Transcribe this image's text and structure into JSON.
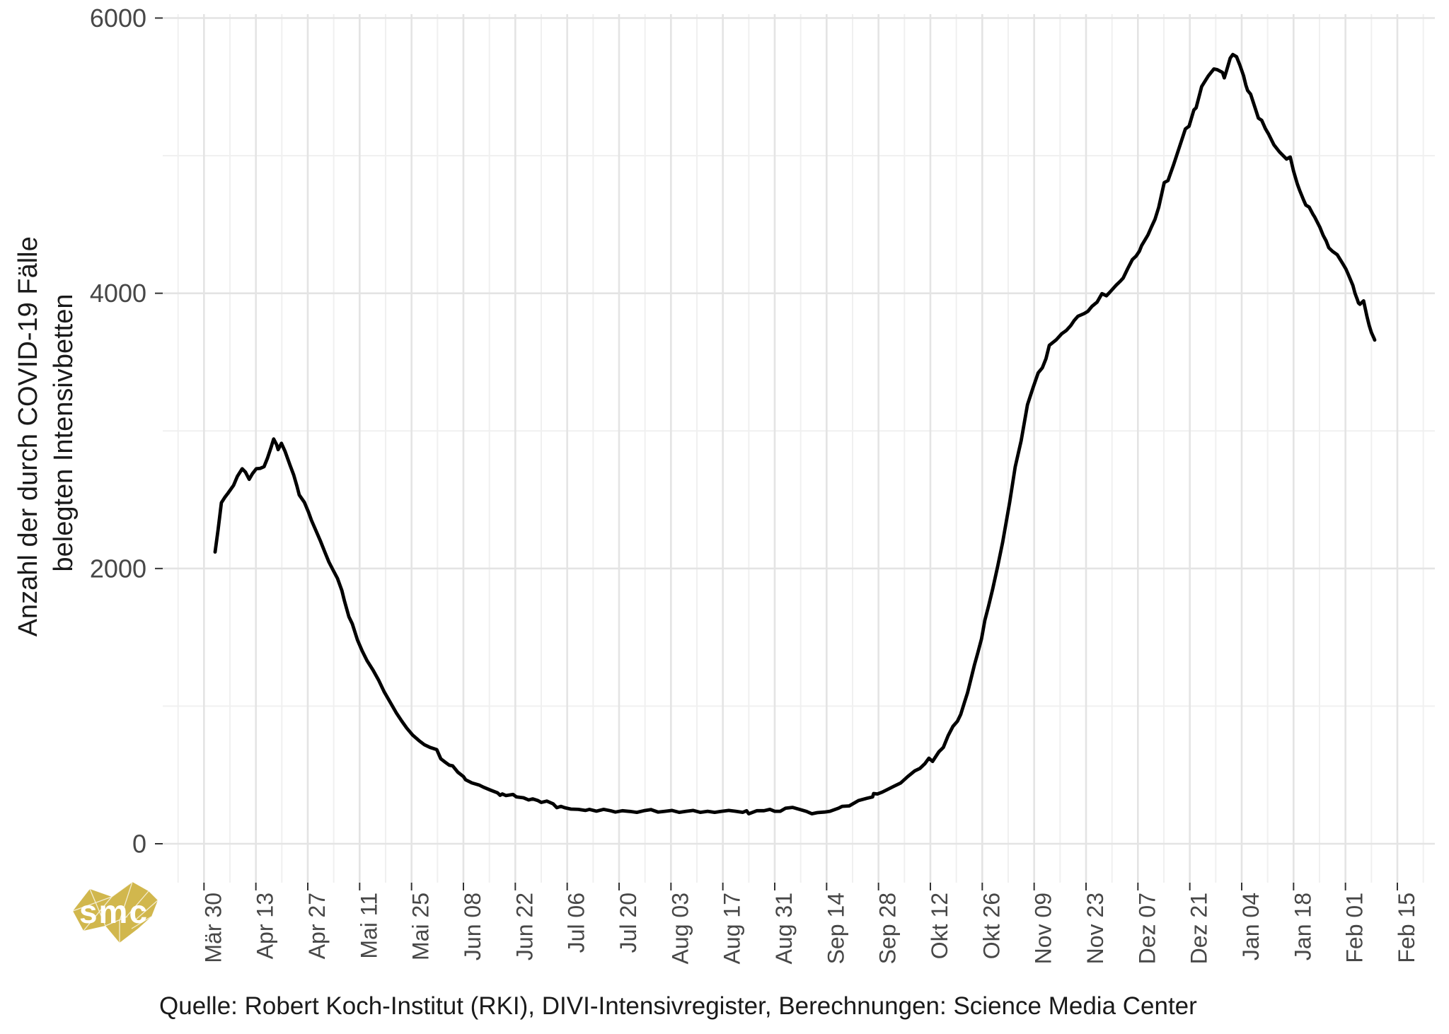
{
  "figure": {
    "y_axis": {
      "title_lines": [
        "Anzahl der durch COVID-19 Fälle",
        "belegten Intensivbetten"
      ],
      "tick_labels": [
        "0",
        "2000",
        "4000",
        "6000"
      ],
      "major_values": [
        0,
        2000,
        4000,
        6000
      ],
      "minor_values": [
        1000,
        3000,
        5000
      ]
    },
    "x_axis": {
      "tick_labels": [
        "Mär 30",
        "Apr 13",
        "Apr 27",
        "Mai 11",
        "Mai 25",
        "Jun 08",
        "Jun 22",
        "Jul 06",
        "Jul 20",
        "Aug 03",
        "Aug 17",
        "Aug 31",
        "Sep 14",
        "Sep 28",
        "Okt 12",
        "Okt 26",
        "Nov 09",
        "Nov 23",
        "Dez 07",
        "Dez 21",
        "Jan 04",
        "Jan 18",
        "Feb 01",
        "Feb 15"
      ],
      "tick_interval_days": 14,
      "minor_interval_days": 7
    },
    "caption": "Quelle: Robert Koch-Institut (RKI), DIVI-Intensivregister, Berechnungen: Science Media Center",
    "logo_text": "smc",
    "colors": {
      "line": "#000000",
      "grid_major": "#e4e4e4",
      "grid_minor": "#f0f0f0",
      "axis_tick": "#333333",
      "tick_text": "#474747",
      "text": "#1a1a1a",
      "logo_gold": "#d1b74d",
      "background": "#ffffff"
    }
  },
  "chart_data": {
    "type": "line",
    "title": "",
    "xlabel": "",
    "ylabel": "Anzahl der durch COVID-19 Fälle belegten Intensivbetten",
    "ylim": [
      0,
      6000
    ],
    "grid": true,
    "legend": false,
    "x_unit": "days since Mär 30",
    "x_tick_days": [
      0,
      14,
      28,
      42,
      56,
      70,
      84,
      98,
      112,
      126,
      140,
      154,
      168,
      182,
      196,
      210,
      224,
      238,
      252,
      266,
      280,
      294,
      308,
      322
    ],
    "points": [
      [
        3,
        2120
      ],
      [
        3.8,
        2280
      ],
      [
        4.7,
        2478
      ],
      [
        5.7,
        2520
      ],
      [
        6.4,
        2545
      ],
      [
        8,
        2605
      ],
      [
        9,
        2670
      ],
      [
        10.3,
        2725
      ],
      [
        11.2,
        2700
      ],
      [
        12.2,
        2648
      ],
      [
        13.1,
        2690
      ],
      [
        14.1,
        2725
      ],
      [
        15.2,
        2728
      ],
      [
        16.2,
        2740
      ],
      [
        17.1,
        2800
      ],
      [
        18.1,
        2880
      ],
      [
        18.8,
        2941
      ],
      [
        19.6,
        2900
      ],
      [
        20,
        2864
      ],
      [
        20.9,
        2910
      ],
      [
        21.9,
        2850
      ],
      [
        23.2,
        2751
      ],
      [
        24.2,
        2680
      ],
      [
        25.1,
        2597
      ],
      [
        25.7,
        2535
      ],
      [
        27.1,
        2480
      ],
      [
        28.2,
        2410
      ],
      [
        29,
        2350
      ],
      [
        30.3,
        2270
      ],
      [
        31.4,
        2201
      ],
      [
        32.6,
        2120
      ],
      [
        33.7,
        2047
      ],
      [
        34.9,
        1985
      ],
      [
        36,
        1929
      ],
      [
        37.2,
        1840
      ],
      [
        37.9,
        1763
      ],
      [
        39.1,
        1650
      ],
      [
        40,
        1599
      ],
      [
        41.4,
        1481
      ],
      [
        42.7,
        1400
      ],
      [
        44,
        1330
      ],
      [
        45.6,
        1262
      ],
      [
        47.1,
        1190
      ],
      [
        48.6,
        1105
      ],
      [
        50.2,
        1030
      ],
      [
        51.9,
        950
      ],
      [
        53.4,
        890
      ],
      [
        54.7,
        840
      ],
      [
        56.3,
        790
      ],
      [
        58,
        750
      ],
      [
        59.5,
        719
      ],
      [
        61,
        700
      ],
      [
        62.8,
        684
      ],
      [
        63.9,
        617
      ],
      [
        65.2,
        590
      ],
      [
        66.2,
        571
      ],
      [
        67.1,
        566
      ],
      [
        68.5,
        520
      ],
      [
        70,
        488
      ],
      [
        70.6,
        465
      ],
      [
        72.3,
        442
      ],
      [
        74.2,
        427
      ],
      [
        75.4,
        411
      ],
      [
        77.3,
        390
      ],
      [
        79.2,
        370
      ],
      [
        79.9,
        352
      ],
      [
        80.5,
        362
      ],
      [
        81.5,
        350
      ],
      [
        83.4,
        358
      ],
      [
        84.3,
        340
      ],
      [
        86.2,
        334
      ],
      [
        87.6,
        318
      ],
      [
        88.7,
        326
      ],
      [
        90.1,
        314
      ],
      [
        91,
        300
      ],
      [
        92.5,
        310
      ],
      [
        94.2,
        290
      ],
      [
        95.2,
        262
      ],
      [
        96.3,
        272
      ],
      [
        97.3,
        262
      ],
      [
        99,
        252
      ],
      [
        101,
        250
      ],
      [
        102.9,
        242
      ],
      [
        104,
        250
      ],
      [
        105.9,
        237
      ],
      [
        107.8,
        250
      ],
      [
        109.7,
        240
      ],
      [
        111,
        230
      ],
      [
        112.9,
        240
      ],
      [
        114.9,
        235
      ],
      [
        116.8,
        228
      ],
      [
        118.7,
        240
      ],
      [
        120.6,
        248
      ],
      [
        122.5,
        230
      ],
      [
        124.4,
        236
      ],
      [
        126.3,
        242
      ],
      [
        128.2,
        228
      ],
      [
        130.1,
        236
      ],
      [
        132,
        242
      ],
      [
        133.9,
        228
      ],
      [
        135.9,
        236
      ],
      [
        137.8,
        228
      ],
      [
        139.7,
        236
      ],
      [
        141.6,
        242
      ],
      [
        143.5,
        236
      ],
      [
        145.4,
        228
      ],
      [
        146.4,
        240
      ],
      [
        147,
        218
      ],
      [
        149.2,
        240
      ],
      [
        151.1,
        240
      ],
      [
        152.7,
        250
      ],
      [
        154,
        236
      ],
      [
        155.5,
        236
      ],
      [
        156.9,
        258
      ],
      [
        158.8,
        264
      ],
      [
        160.7,
        250
      ],
      [
        162.6,
        235
      ],
      [
        164,
        218
      ],
      [
        165.5,
        226
      ],
      [
        167.4,
        230
      ],
      [
        168.9,
        236
      ],
      [
        171.2,
        258
      ],
      [
        172.2,
        272
      ],
      [
        174.1,
        275
      ],
      [
        176.6,
        314
      ],
      [
        178.8,
        330
      ],
      [
        180.4,
        340
      ],
      [
        180.7,
        365
      ],
      [
        181.7,
        362
      ],
      [
        183,
        375
      ],
      [
        184.2,
        391
      ],
      [
        186.1,
        417
      ],
      [
        188,
        442
      ],
      [
        189.9,
        488
      ],
      [
        191.8,
        530
      ],
      [
        193.2,
        548
      ],
      [
        194.5,
        581
      ],
      [
        195.6,
        622
      ],
      [
        196.6,
        598
      ],
      [
        198.3,
        668
      ],
      [
        199.5,
        700
      ],
      [
        200.8,
        786
      ],
      [
        202.1,
        853
      ],
      [
        203.3,
        890
      ],
      [
        204.2,
        940
      ],
      [
        205.2,
        1028
      ],
      [
        206,
        1095
      ],
      [
        207.1,
        1213
      ],
      [
        207.9,
        1300
      ],
      [
        208.8,
        1387
      ],
      [
        209.8,
        1490
      ],
      [
        210.7,
        1624
      ],
      [
        211.7,
        1727
      ],
      [
        212.8,
        1850
      ],
      [
        214.2,
        2020
      ],
      [
        215.5,
        2190
      ],
      [
        217.4,
        2482
      ],
      [
        218.9,
        2739
      ],
      [
        220.5,
        2929
      ],
      [
        222.2,
        3190
      ],
      [
        223.7,
        3314
      ],
      [
        225.1,
        3422
      ],
      [
        226.2,
        3458
      ],
      [
        227.2,
        3525
      ],
      [
        228.1,
        3622
      ],
      [
        230,
        3663
      ],
      [
        231.4,
        3705
      ],
      [
        232.7,
        3730
      ],
      [
        233.9,
        3766
      ],
      [
        234.8,
        3802
      ],
      [
        235.8,
        3833
      ],
      [
        237.5,
        3853
      ],
      [
        238.5,
        3869
      ],
      [
        239.6,
        3905
      ],
      [
        241,
        3936
      ],
      [
        242.3,
        3997
      ],
      [
        243.5,
        3982
      ],
      [
        244.4,
        4007
      ],
      [
        246.1,
        4058
      ],
      [
        247.3,
        4089
      ],
      [
        248,
        4110
      ],
      [
        249.2,
        4177
      ],
      [
        250.5,
        4245
      ],
      [
        251.5,
        4270
      ],
      [
        252.4,
        4306
      ],
      [
        253,
        4347
      ],
      [
        253.8,
        4383
      ],
      [
        254.7,
        4424
      ],
      [
        255.7,
        4485
      ],
      [
        256.6,
        4537
      ],
      [
        257.6,
        4624
      ],
      [
        259.1,
        4804
      ],
      [
        260.1,
        4819
      ],
      [
        261.6,
        4932
      ],
      [
        264.3,
        5153
      ],
      [
        264.8,
        5194
      ],
      [
        265.8,
        5214
      ],
      [
        267.1,
        5332
      ],
      [
        267.7,
        5348
      ],
      [
        269.2,
        5502
      ],
      [
        271,
        5579
      ],
      [
        272.5,
        5630
      ],
      [
        273.4,
        5625
      ],
      [
        274.8,
        5605
      ],
      [
        275.3,
        5565
      ],
      [
        275.9,
        5616
      ],
      [
        276.9,
        5709
      ],
      [
        277.6,
        5735
      ],
      [
        278.6,
        5719
      ],
      [
        279.5,
        5658
      ],
      [
        280.5,
        5581
      ],
      [
        281.1,
        5514
      ],
      [
        281.6,
        5473
      ],
      [
        282.4,
        5447
      ],
      [
        283.9,
        5324
      ],
      [
        284.5,
        5273
      ],
      [
        285.4,
        5257
      ],
      [
        286.4,
        5196
      ],
      [
        287.3,
        5155
      ],
      [
        288.7,
        5078
      ],
      [
        290.2,
        5027
      ],
      [
        292.1,
        4975
      ],
      [
        293.1,
        4990
      ],
      [
        294,
        4888
      ],
      [
        295,
        4795
      ],
      [
        295.7,
        4744
      ],
      [
        296.7,
        4677
      ],
      [
        297.3,
        4641
      ],
      [
        298.2,
        4626
      ],
      [
        299.2,
        4575
      ],
      [
        299.7,
        4554
      ],
      [
        301.1,
        4480
      ],
      [
        302,
        4420
      ],
      [
        302.8,
        4380
      ],
      [
        303.5,
        4331
      ],
      [
        304.5,
        4305
      ],
      [
        305.8,
        4280
      ],
      [
        307.2,
        4218
      ],
      [
        308.1,
        4177
      ],
      [
        308.7,
        4141
      ],
      [
        310,
        4058
      ],
      [
        310.6,
        3997
      ],
      [
        311.2,
        3955
      ],
      [
        311.5,
        3930
      ],
      [
        311.9,
        3920
      ],
      [
        312.9,
        3945
      ],
      [
        313.8,
        3833
      ],
      [
        314.4,
        3766
      ],
      [
        315,
        3715
      ],
      [
        315.7,
        3673
      ],
      [
        315.9,
        3660
      ]
    ]
  }
}
